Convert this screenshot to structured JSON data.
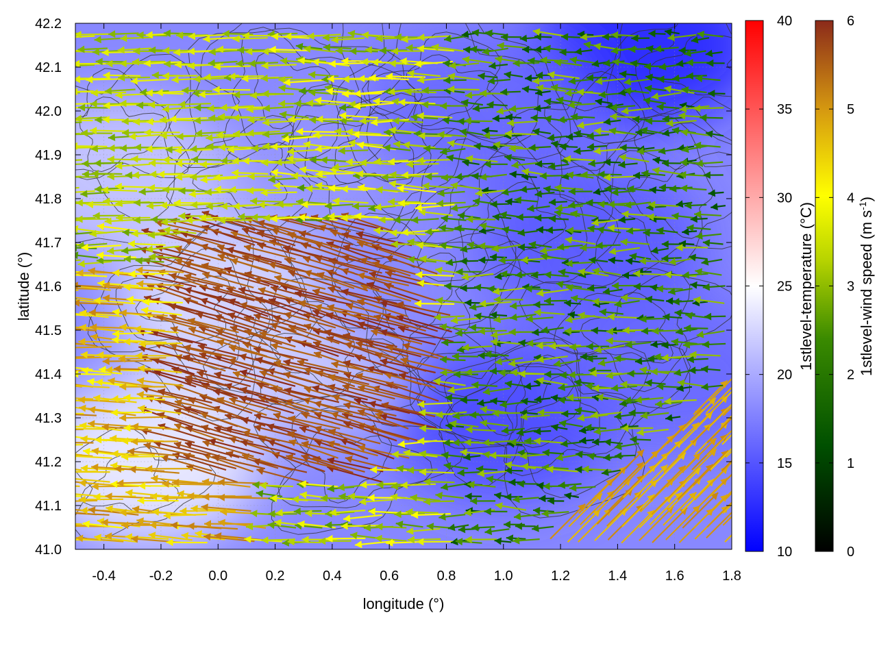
{
  "chart_data": {
    "type": "vector field with contours over temperature heatmap",
    "xlabel": "longitude (°)",
    "ylabel": "latitude (°)",
    "xlim": [
      -0.5,
      1.8
    ],
    "ylim": [
      41.0,
      42.2
    ],
    "x_ticks": [
      "-0.4",
      "-0.2",
      "0.0",
      "0.2",
      "0.4",
      "0.6",
      "0.8",
      "1.0",
      "1.2",
      "1.4",
      "1.6",
      "1.8"
    ],
    "x_tick_values": [
      -0.4,
      -0.2,
      0.0,
      0.2,
      0.4,
      0.6,
      0.8,
      1.0,
      1.2,
      1.4,
      1.6,
      1.8
    ],
    "y_ticks": [
      "41.0",
      "41.1",
      "41.2",
      "41.3",
      "41.4",
      "41.5",
      "41.6",
      "41.7",
      "41.8",
      "41.9",
      "42.0",
      "42.1",
      "42.2"
    ],
    "y_tick_values": [
      41.0,
      41.1,
      41.2,
      41.3,
      41.4,
      41.5,
      41.6,
      41.7,
      41.8,
      41.9,
      42.0,
      42.1,
      42.2
    ],
    "grid": true,
    "temperature_colorbar": {
      "label": "1stlevel-temperature (°C)",
      "range": [
        10,
        40
      ],
      "ticks": [
        "10",
        "15",
        "20",
        "25",
        "30",
        "35",
        "40"
      ],
      "tick_values": [
        10,
        15,
        20,
        25,
        30,
        35,
        40
      ],
      "colors": [
        "#0000ff",
        "#ffffff",
        "#ff0000"
      ]
    },
    "wind_colorbar": {
      "label_main": "1stlevel-wind speed (m s",
      "label_sup": "-1",
      "label_end": ")",
      "range": [
        0,
        6
      ],
      "ticks": [
        "0",
        "1",
        "2",
        "3",
        "4",
        "5",
        "6"
      ],
      "tick_values": [
        0,
        1,
        2,
        3,
        4,
        5,
        6
      ],
      "colors": [
        "#000000",
        "#006400",
        "#7fbf00",
        "#ffff00",
        "#d4a017",
        "#8b2500"
      ]
    },
    "temperature_field_centers": [
      {
        "lon": -0.25,
        "lat": 41.2,
        "temp": 24.5
      },
      {
        "lon": 0.05,
        "lat": 41.55,
        "temp": 23.5
      },
      {
        "lon": -0.35,
        "lat": 41.85,
        "temp": 22
      },
      {
        "lon": 0.3,
        "lat": 41.45,
        "temp": 22
      },
      {
        "lon": 0.5,
        "lat": 41.85,
        "temp": 19
      },
      {
        "lon": 0.75,
        "lat": 41.6,
        "temp": 18
      },
      {
        "lon": 1.0,
        "lat": 41.3,
        "temp": 14
      },
      {
        "lon": 1.5,
        "lat": 42.15,
        "temp": 12
      },
      {
        "lon": 1.3,
        "lat": 41.7,
        "temp": 15
      },
      {
        "lon": 0.9,
        "lat": 42.0,
        "temp": 16
      },
      {
        "lon": 1.6,
        "lat": 41.4,
        "temp": 16
      }
    ],
    "wind_regimes": [
      {
        "region": "northwest",
        "direction": "west",
        "speed_range": [
          2,
          4
        ]
      },
      {
        "region": "west-central",
        "direction": "northwest",
        "speed_range": [
          5,
          6
        ]
      },
      {
        "region": "southwest",
        "direction": "west",
        "speed_range": [
          4,
          5.5
        ]
      },
      {
        "region": "east",
        "direction": "west",
        "speed_range": [
          1,
          3
        ]
      },
      {
        "region": "southeast",
        "direction": "northeast",
        "speed_range": [
          4,
          5
        ]
      }
    ]
  }
}
